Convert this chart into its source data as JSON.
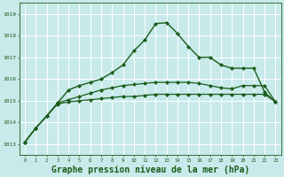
{
  "background_color": "#c8eaea",
  "grid_color": "#b8d8d8",
  "line_color_dark": "#1a5c1a",
  "xlabel": "Graphe pression niveau de la mer (hPa)",
  "xlabel_fontsize": 7,
  "xlim": [
    -0.5,
    23.5
  ],
  "ylim": [
    1012.5,
    1019.5
  ],
  "yticks": [
    1013,
    1014,
    1015,
    1016,
    1017,
    1018,
    1019
  ],
  "xticks": [
    0,
    1,
    2,
    3,
    4,
    5,
    6,
    7,
    8,
    9,
    10,
    11,
    12,
    13,
    14,
    15,
    16,
    17,
    18,
    19,
    20,
    21,
    22,
    23
  ],
  "series1_x": [
    0,
    1,
    2,
    3,
    4,
    5,
    6,
    7,
    8,
    9,
    10,
    11,
    12,
    13,
    14,
    15,
    16,
    17,
    18,
    19,
    20,
    21,
    22,
    23
  ],
  "series1_y": [
    1013.1,
    1013.75,
    1014.3,
    1014.85,
    1014.95,
    1015.0,
    1015.05,
    1015.1,
    1015.15,
    1015.2,
    1015.2,
    1015.25,
    1015.3,
    1015.3,
    1015.3,
    1015.3,
    1015.3,
    1015.3,
    1015.3,
    1015.3,
    1015.3,
    1015.3,
    1015.3,
    1014.95
  ],
  "series2_x": [
    0,
    1,
    2,
    3,
    4,
    5,
    6,
    7,
    8,
    9,
    10,
    11,
    12,
    13,
    14,
    15,
    16,
    17,
    18,
    19,
    20,
    21,
    22,
    23
  ],
  "series2_y": [
    1013.1,
    1013.75,
    1014.3,
    1014.9,
    1015.05,
    1015.2,
    1015.35,
    1015.5,
    1015.6,
    1015.7,
    1015.75,
    1015.8,
    1015.85,
    1015.85,
    1015.85,
    1015.85,
    1015.8,
    1015.7,
    1015.6,
    1015.55,
    1015.7,
    1015.7,
    1015.7,
    1014.95
  ],
  "series3_x": [
    0,
    1,
    2,
    3,
    4,
    5,
    6,
    7,
    8,
    9,
    10,
    11,
    12,
    13,
    14,
    15,
    16,
    17,
    18,
    19,
    20,
    21,
    22,
    23
  ],
  "series3_y": [
    1013.1,
    1013.75,
    1014.3,
    1014.9,
    1015.5,
    1015.7,
    1015.85,
    1016.0,
    1016.3,
    1016.65,
    1017.3,
    1017.8,
    1018.55,
    1018.6,
    1018.1,
    1017.5,
    1017.0,
    1017.0,
    1016.65,
    1016.5,
    1016.5,
    1016.5,
    1015.4,
    1014.95
  ]
}
